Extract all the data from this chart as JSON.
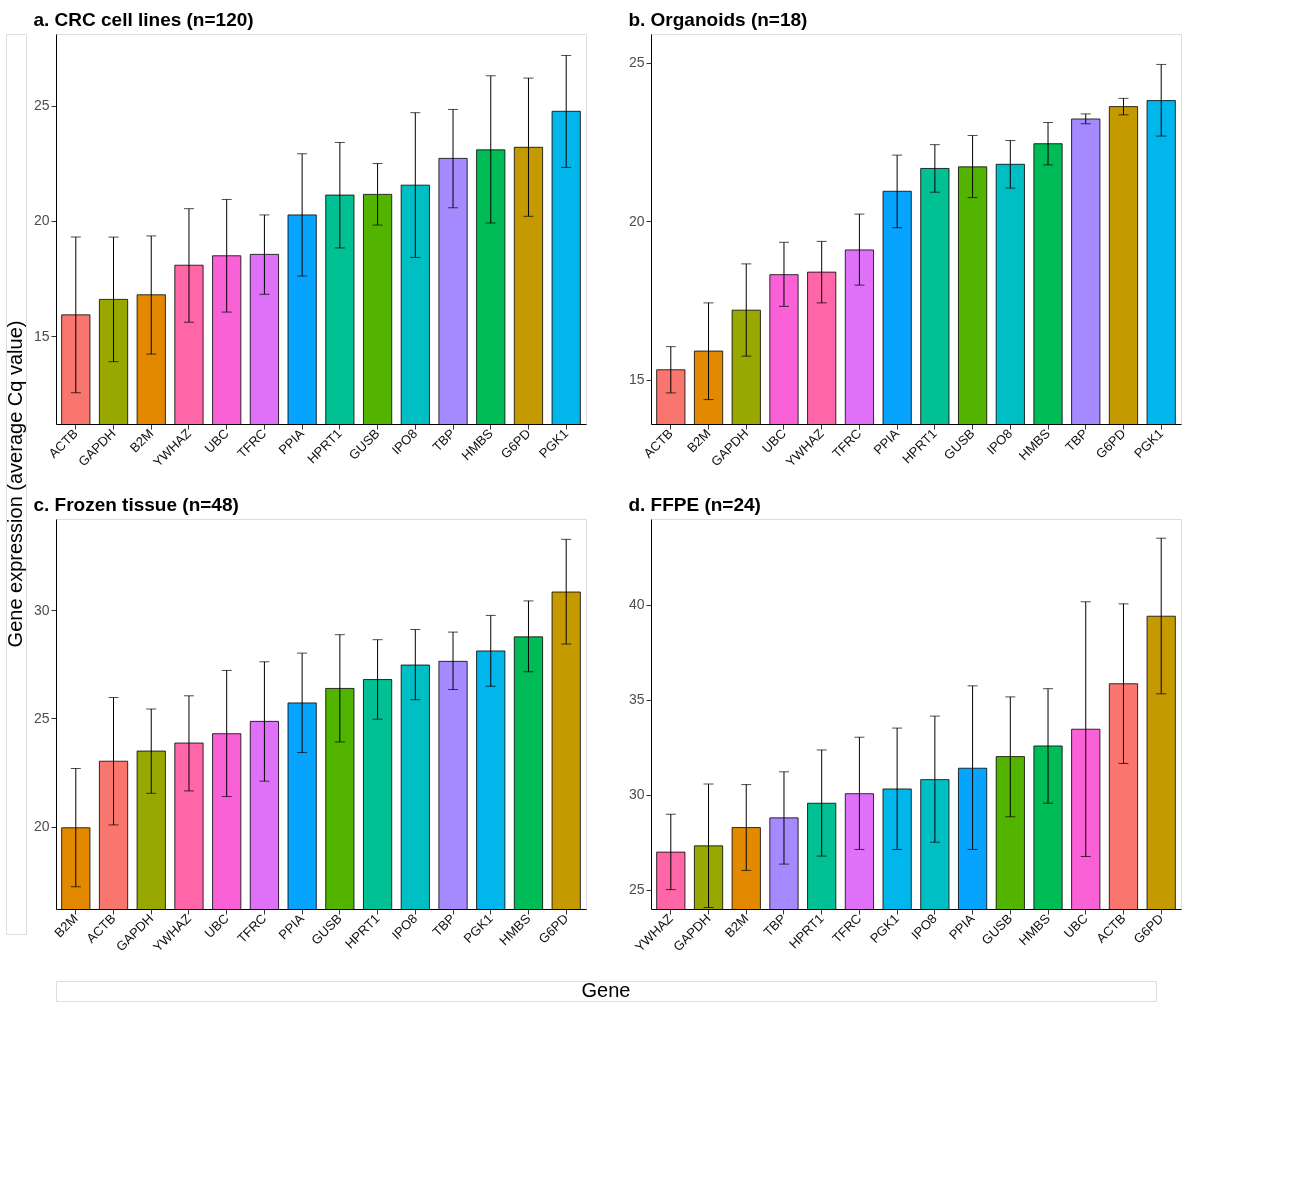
{
  "chart_data": [
    {
      "type": "bar",
      "title": "a. CRC cell lines (n=120)",
      "ylabel": "Gene expression (average Cq value)",
      "xlabel": "Gene",
      "categories": [
        "ACTB",
        "GAPDH",
        "B2M",
        "YWHAZ",
        "UBC",
        "TFRC",
        "PPIA",
        "HPRT1",
        "GUSB",
        "IPO8",
        "TBP",
        "HMBS",
        "G6PD",
        "PGK1"
      ],
      "values": [
        15.93,
        16.6,
        16.8,
        18.08,
        18.49,
        18.55,
        20.26,
        21.12,
        21.15,
        21.55,
        22.71,
        23.08,
        23.19,
        24.75
      ],
      "errors": [
        [
          12.55,
          19.3
        ],
        [
          13.9,
          19.3
        ],
        [
          14.23,
          19.35
        ],
        [
          15.61,
          20.53
        ],
        [
          16.05,
          20.93
        ],
        [
          16.82,
          20.26
        ],
        [
          17.61,
          22.91
        ],
        [
          18.83,
          23.4
        ],
        [
          19.82,
          22.49
        ],
        [
          18.42,
          24.69
        ],
        [
          20.57,
          24.83
        ],
        [
          19.91,
          26.29
        ],
        [
          20.2,
          26.19
        ],
        [
          22.32,
          27.17
        ]
      ],
      "colors": [
        "#f8766d",
        "#99a800",
        "#e38900",
        "#ff66a8",
        "#fb61d7",
        "#df70f8",
        "#06a4ff",
        "#00c094",
        "#53b400",
        "#00bfc4",
        "#a58aff",
        "#00bc56",
        "#c49a00",
        "#00b6eb"
      ],
      "ylim": [
        11.2,
        28.1
      ],
      "yticks": [
        15,
        20,
        25
      ]
    },
    {
      "type": "bar",
      "title": "b. Organoids (n=18)",
      "categories": [
        "ACTB",
        "B2M",
        "GAPDH",
        "UBC",
        "YWHAZ",
        "TFRC",
        "PPIA",
        "HPRT1",
        "GUSB",
        "IPO8",
        "HMBS",
        "TBP",
        "G6PD",
        "PGK1"
      ],
      "values": [
        15.31,
        15.9,
        17.19,
        18.31,
        18.39,
        19.09,
        20.94,
        21.66,
        21.71,
        21.79,
        22.44,
        23.22,
        23.61,
        23.8
      ],
      "errors": [
        [
          14.58,
          16.04
        ],
        [
          14.37,
          17.42
        ],
        [
          15.74,
          18.65
        ],
        [
          17.31,
          19.33
        ],
        [
          17.42,
          19.36
        ],
        [
          17.98,
          20.22
        ],
        [
          19.79,
          22.08
        ],
        [
          20.91,
          22.41
        ],
        [
          20.74,
          22.7
        ],
        [
          21.04,
          22.54
        ],
        [
          21.77,
          23.11
        ],
        [
          23.07,
          23.38
        ],
        [
          23.35,
          23.87
        ],
        [
          22.68,
          24.94
        ]
      ],
      "colors": [
        "#f8766d",
        "#e38900",
        "#99a800",
        "#fb61d7",
        "#ff66a8",
        "#df70f8",
        "#06a4ff",
        "#00c094",
        "#53b400",
        "#00bfc4",
        "#00bc56",
        "#a58aff",
        "#c49a00",
        "#00b6eb"
      ],
      "ylim": [
        13.6,
        25.9
      ],
      "yticks": [
        15,
        20,
        25
      ]
    },
    {
      "type": "bar",
      "title": "c. Frozen tissue (n=48)",
      "categories": [
        "B2M",
        "ACTB",
        "GAPDH",
        "YWHAZ",
        "UBC",
        "TFRC",
        "PPIA",
        "GUSB",
        "HPRT1",
        "IPO8",
        "TBP",
        "PGK1",
        "HMBS",
        "G6PD"
      ],
      "values": [
        19.95,
        23.02,
        23.49,
        23.86,
        24.29,
        24.86,
        25.71,
        26.38,
        26.79,
        27.46,
        27.63,
        28.11,
        28.76,
        30.83
      ],
      "errors": [
        [
          17.23,
          22.69
        ],
        [
          20.08,
          25.96
        ],
        [
          21.54,
          25.43
        ],
        [
          21.65,
          26.04
        ],
        [
          21.39,
          27.21
        ],
        [
          22.1,
          27.61
        ],
        [
          23.42,
          28.01
        ],
        [
          23.91,
          28.86
        ],
        [
          24.96,
          28.63
        ],
        [
          25.86,
          29.1
        ],
        [
          26.33,
          28.98
        ],
        [
          26.48,
          29.75
        ],
        [
          27.15,
          30.42
        ],
        [
          28.43,
          33.26
        ]
      ],
      "colors": [
        "#e38900",
        "#f8766d",
        "#99a800",
        "#ff66a8",
        "#fb61d7",
        "#df70f8",
        "#06a4ff",
        "#53b400",
        "#00c094",
        "#00bfc4",
        "#a58aff",
        "#00b6eb",
        "#00bc56",
        "#c49a00"
      ],
      "ylim": [
        16.2,
        34.2
      ],
      "yticks": [
        20,
        25,
        30
      ]
    },
    {
      "type": "bar",
      "title": "d. FFPE (n=24)",
      "categories": [
        "YWHAZ",
        "GAPDH",
        "B2M",
        "TBP",
        "HPRT1",
        "TFRC",
        "PGK1",
        "IPO8",
        "PPIA",
        "GUSB",
        "HMBS",
        "UBC",
        "ACTB",
        "G6PD"
      ],
      "values": [
        26.99,
        27.32,
        28.28,
        28.79,
        29.56,
        30.06,
        30.31,
        30.8,
        31.4,
        32.01,
        32.57,
        33.45,
        35.84,
        39.39
      ],
      "errors": [
        [
          25.02,
          28.98
        ],
        [
          24.08,
          30.57
        ],
        [
          26.03,
          30.54
        ],
        [
          26.36,
          31.21
        ],
        [
          26.78,
          32.36
        ],
        [
          27.13,
          33.03
        ],
        [
          27.13,
          33.51
        ],
        [
          27.51,
          34.14
        ],
        [
          27.13,
          35.73
        ],
        [
          28.85,
          35.15
        ],
        [
          29.56,
          35.58
        ],
        [
          26.76,
          40.15
        ],
        [
          31.65,
          40.04
        ],
        [
          35.31,
          43.49
        ]
      ],
      "colors": [
        "#ff66a8",
        "#99a800",
        "#e38900",
        "#a58aff",
        "#00c094",
        "#df70f8",
        "#00b6eb",
        "#00bfc4",
        "#06a4ff",
        "#53b400",
        "#00bc56",
        "#fb61d7",
        "#f8766d",
        "#c49a00"
      ],
      "ylim": [
        24.0,
        44.5
      ],
      "yticks": [
        25,
        30,
        35,
        40
      ]
    }
  ]
}
